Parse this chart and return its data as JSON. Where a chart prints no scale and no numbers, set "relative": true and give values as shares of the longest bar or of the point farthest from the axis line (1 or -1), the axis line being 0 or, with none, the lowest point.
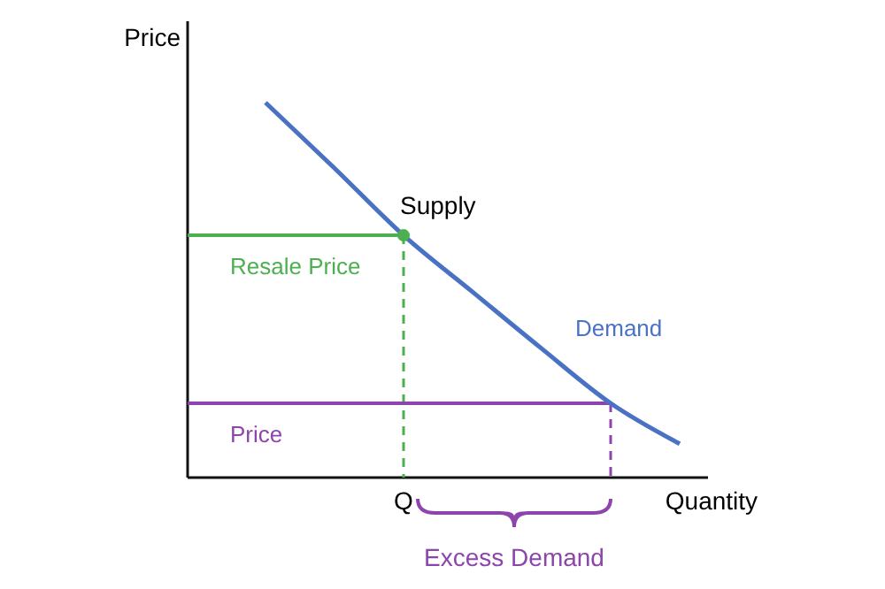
{
  "chart_data": {
    "type": "line",
    "relative": true,
    "xlabel": "Quantity",
    "ylabel": "Price",
    "categories": [
      null,
      null,
      null,
      null,
      null,
      null,
      null
    ],
    "series": [
      {
        "name": "Demand",
        "color": "#4a72c4",
        "values": [
          1,
          0.825,
          0.646,
          0.495,
          0.344,
          0.198,
          0.09
        ]
      }
    ],
    "ref_lines": [
      {
        "axis": "y",
        "value": 0.646,
        "label": "Resale Price",
        "color": "#4caf50"
      },
      {
        "axis": "y",
        "value": 0.198,
        "label": "Price",
        "color": "#8e44ad"
      }
    ],
    "annotations": [
      "Supply",
      "Excess Demand",
      "Q"
    ],
    "legend": false,
    "grid": false,
    "marker": "none",
    "line_style": "solid"
  }
}
